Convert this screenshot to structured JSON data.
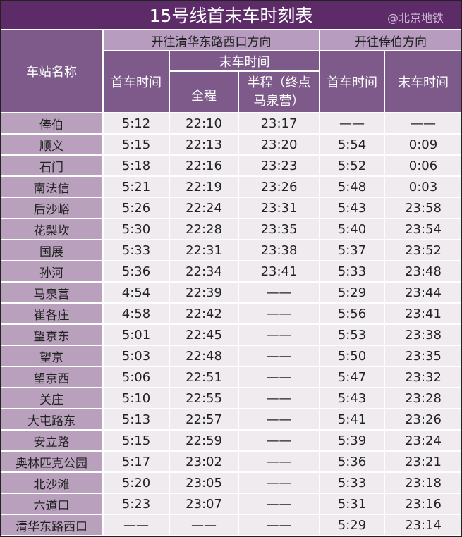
{
  "title": "15号线首末车时刻表",
  "headers": {
    "station": "车站名称",
    "dir1": "开往清华东路西口方向",
    "dir2": "开往俸伯方向",
    "first": "首车时间",
    "last": "末车时间",
    "full": "全程",
    "half": "半程（终点马泉营）",
    "first2": "首车时间",
    "last2": "末车时间"
  },
  "rows": [
    [
      "俸伯",
      "5:12",
      "22:10",
      "23:17",
      "——",
      "——"
    ],
    [
      "顺义",
      "5:15",
      "22:13",
      "23:20",
      "5:54",
      "0:09"
    ],
    [
      "石门",
      "5:18",
      "22:16",
      "23:23",
      "5:52",
      "0:06"
    ],
    [
      "南法信",
      "5:21",
      "22:19",
      "23:26",
      "5:48",
      "0:03"
    ],
    [
      "后沙峪",
      "5:26",
      "22:24",
      "23:31",
      "5:43",
      "23:58"
    ],
    [
      "花梨坎",
      "5:30",
      "22:28",
      "23:35",
      "5:40",
      "23:54"
    ],
    [
      "国展",
      "5:33",
      "22:31",
      "23:38",
      "5:37",
      "23:52"
    ],
    [
      "孙河",
      "5:36",
      "22:34",
      "23:41",
      "5:33",
      "23:48"
    ],
    [
      "马泉营",
      "4:54",
      "22:39",
      "——",
      "5:29",
      "23:44"
    ],
    [
      "崔各庄",
      "4:58",
      "22:42",
      "——",
      "5:56",
      "23:41"
    ],
    [
      "望京东",
      "5:01",
      "22:45",
      "——",
      "5:53",
      "23:38"
    ],
    [
      "望京",
      "5:03",
      "22:48",
      "——",
      "5:50",
      "23:35"
    ],
    [
      "望京西",
      "5:06",
      "22:51",
      "——",
      "5:47",
      "23:32"
    ],
    [
      "关庄",
      "5:10",
      "22:55",
      "——",
      "5:43",
      "23:28"
    ],
    [
      "大屯路东",
      "5:13",
      "22:57",
      "——",
      "5:41",
      "23:26"
    ],
    [
      "安立路",
      "5:15",
      "22:59",
      "——",
      "5:39",
      "23:24"
    ],
    [
      "奥林匹克公园",
      "5:17",
      "23:02",
      "——",
      "5:36",
      "23:21"
    ],
    [
      "北沙滩",
      "5:20",
      "23:05",
      "——",
      "5:33",
      "23:18"
    ],
    [
      "六道口",
      "5:23",
      "23:07",
      "——",
      "5:31",
      "23:16"
    ],
    [
      "清华东路西口",
      "——",
      "——",
      "——",
      "5:29",
      "23:14"
    ]
  ],
  "watermark": "@北京地铁",
  "colors": {
    "title": "#5c2b68",
    "header": "#7d5a89",
    "header_light": "#b79cbf",
    "station": "#b9a1bd",
    "cell": "#efebee"
  }
}
